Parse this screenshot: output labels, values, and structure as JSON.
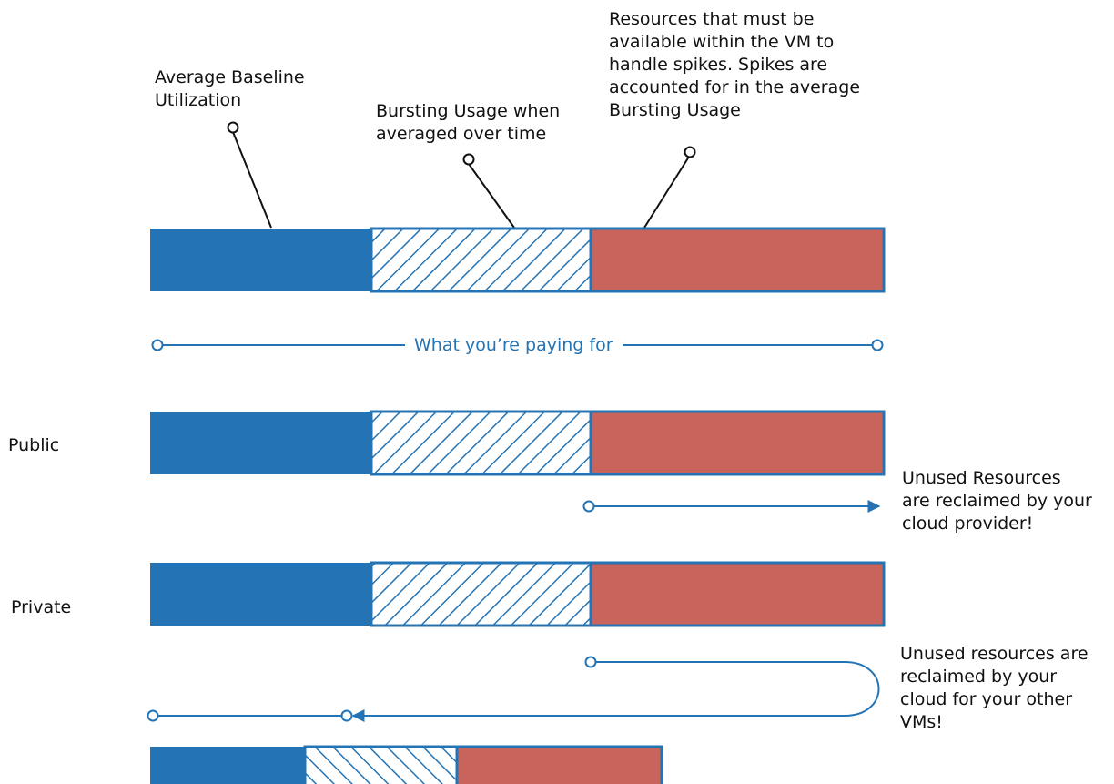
{
  "annotations": {
    "baseline": "Average Baseline\nUtilization",
    "bursting": "Bursting Usage when\naveraged over time",
    "spikes": "Resources that must be\navailable within the VM to\nhandle spikes. Spikes are\naccounted for in the average\nBursting Usage"
  },
  "paying_label": "What you’re paying for",
  "rows": {
    "public": "Public",
    "private": "Private"
  },
  "notes": {
    "public_reclaim": "Unused Resources\nare reclaimed by your\ncloud provider!",
    "private_reclaim": "Unused resources are\nreclaimed by your\ncloud for your other\nVMs!"
  },
  "colors": {
    "baseline": "#2474b5",
    "bursting_hatch": "#2474b5",
    "spikes": "#c8645c",
    "accent": "#2474b5"
  }
}
